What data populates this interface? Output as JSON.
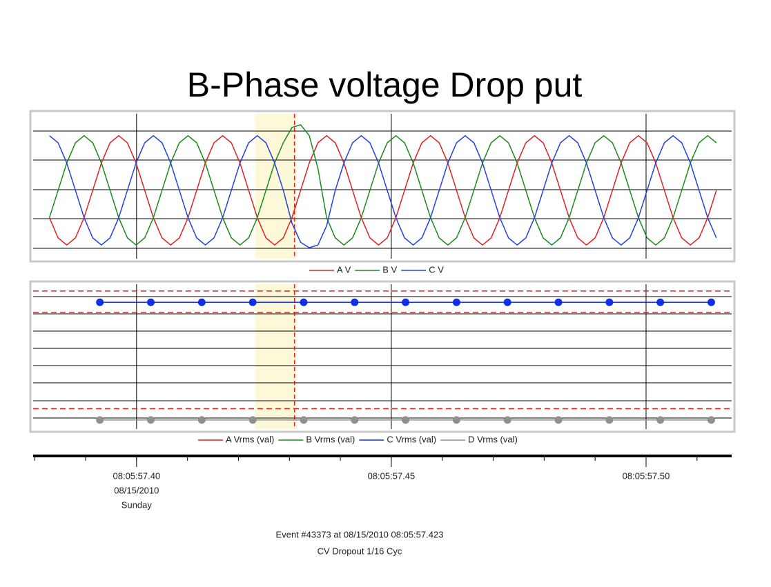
{
  "title": "B-Phase voltage Drop put",
  "time_axis": {
    "xlim": [
      57.3797,
      57.5168
    ],
    "xticks": [
      {
        "value": 57.4,
        "label": "08:05:57.40"
      },
      {
        "value": 57.45,
        "label": "08:05:57.45"
      },
      {
        "value": 57.5,
        "label": "08:05:57.50"
      }
    ],
    "xminorticks": [
      57.38,
      57.39,
      57.4,
      57.41,
      57.42,
      57.43,
      57.44,
      57.45,
      57.46,
      57.47,
      57.48,
      57.49,
      57.5,
      57.51
    ],
    "date_label": "08/15/2010",
    "day_label": "Sunday",
    "highlight": [
      57.4233,
      57.4314
    ],
    "cursor": 57.431
  },
  "chart_data": [
    {
      "type": "line",
      "xlim": [
        57.3797,
        57.5168
      ],
      "ylim": [
        -1.25,
        1.4
      ],
      "x": [
        57.3829,
        57.3846,
        57.3863,
        57.388,
        57.3897,
        57.3914,
        57.3931,
        57.3948,
        57.3965,
        57.3982,
        57.3999,
        57.4016,
        57.4033,
        57.405,
        57.4067,
        57.4084,
        57.4101,
        57.4118,
        57.4135,
        57.4152,
        57.4169,
        57.4186,
        57.4203,
        57.422,
        57.4237,
        57.4254,
        57.4271,
        57.4288,
        57.4305,
        57.4322,
        57.4339,
        57.4356,
        57.4373,
        57.439,
        57.4407,
        57.4424,
        57.4441,
        57.4458,
        57.4475,
        57.4492,
        57.4509,
        57.4526,
        57.4543,
        57.456,
        57.4577,
        57.4594,
        57.4611,
        57.4628,
        57.4645,
        57.4662,
        57.4679,
        57.4696,
        57.4713,
        57.473,
        57.4747,
        57.4764,
        57.4781,
        57.4798,
        57.4815,
        57.4832,
        57.4849,
        57.4866,
        57.4883,
        57.49,
        57.4917,
        57.4934,
        57.4951,
        57.4968,
        57.4985,
        57.5002,
        57.5019,
        57.5036,
        57.5053,
        57.507,
        57.5087,
        57.5104,
        57.5121,
        57.5138
      ],
      "series": [
        {
          "name": "A V",
          "color": "#e02020",
          "values": [
            -0.5,
            -0.87,
            -1,
            -0.87,
            -0.5,
            0,
            0.5,
            0.87,
            1,
            0.87,
            0.5,
            0,
            -0.5,
            -0.87,
            -1,
            -0.87,
            -0.5,
            0,
            0.5,
            0.87,
            1,
            0.87,
            0.5,
            0,
            -0.5,
            -0.87,
            -1,
            -0.87,
            -0.5,
            0,
            0.5,
            0.87,
            1,
            0.87,
            0.5,
            0,
            -0.5,
            -0.87,
            -1,
            -0.87,
            -0.5,
            0,
            0.5,
            0.87,
            1,
            0.87,
            0.5,
            0,
            -0.5,
            -0.87,
            -1,
            -0.87,
            -0.5,
            0,
            0.5,
            0.87,
            1,
            0.87,
            0.5,
            0,
            -0.5,
            -0.87,
            -1,
            -0.87,
            -0.5,
            0,
            0.5,
            0.87,
            1,
            0.87,
            0.5,
            0,
            -0.5,
            -0.87,
            -1,
            -0.87,
            -0.5,
            0
          ]
        },
        {
          "name": "B V",
          "color": "#1a8a1a",
          "values": [
            -0.5,
            0,
            0.5,
            0.87,
            1,
            0.87,
            0.5,
            0,
            -0.5,
            -0.87,
            -1,
            -0.87,
            -0.5,
            0,
            0.5,
            0.87,
            1,
            0.87,
            0.5,
            0,
            -0.5,
            -0.87,
            -1,
            -0.87,
            -0.5,
            0,
            0.5,
            0.87,
            1.15,
            1.2,
            1.0,
            0.4,
            -0.5,
            -0.87,
            -1,
            -0.87,
            -0.5,
            0,
            0.5,
            0.87,
            1,
            0.87,
            0.5,
            0,
            -0.5,
            -0.87,
            -1,
            -0.87,
            -0.5,
            0,
            0.5,
            0.87,
            1,
            0.87,
            0.5,
            0,
            -0.5,
            -0.87,
            -1,
            -0.87,
            -0.5,
            0,
            0.5,
            0.87,
            1,
            0.87,
            0.5,
            0,
            -0.5,
            -0.87,
            -1,
            -0.87,
            -0.5,
            0,
            0.5,
            0.87,
            1,
            0.87
          ]
        },
        {
          "name": "C V",
          "color": "#2040e0",
          "values": [
            1,
            0.87,
            0.5,
            0,
            -0.5,
            -0.87,
            -1,
            -0.87,
            -0.5,
            0,
            0.5,
            0.87,
            1,
            0.87,
            0.5,
            0,
            -0.5,
            -0.87,
            -1,
            -0.87,
            -0.5,
            0,
            0.5,
            0.87,
            1,
            0.87,
            0.5,
            0,
            -0.6,
            -0.95,
            -1.05,
            -1.0,
            -0.65,
            0,
            0.5,
            0.87,
            1,
            0.87,
            0.5,
            0,
            -0.5,
            -0.87,
            -1,
            -0.87,
            -0.5,
            0,
            0.5,
            0.87,
            1,
            0.87,
            0.5,
            0,
            -0.5,
            -0.87,
            -1,
            -0.87,
            -0.5,
            0,
            0.5,
            0.87,
            1,
            0.87,
            0.5,
            0,
            -0.5,
            -0.87,
            -1,
            -0.87,
            -0.5,
            0,
            0.5,
            0.87,
            1,
            0.87,
            0.5,
            0,
            -0.5,
            -0.87
          ]
        }
      ]
    },
    {
      "type": "line",
      "xlim": [
        57.3797,
        57.5168
      ],
      "ylim": [
        -0.08,
        1.2
      ],
      "limits": [
        1.14,
        0.95,
        0.1
      ],
      "limit_color": "#e02020",
      "x": [
        57.3928,
        57.4028,
        57.4128,
        57.4228,
        57.4328,
        57.4428,
        57.4528,
        57.4628,
        57.4728,
        57.4828,
        57.4928,
        57.5028,
        57.5128
      ],
      "series": [
        {
          "name": "A Vrms (val)",
          "color": "#e02020",
          "values": [
            1.04,
            1.04,
            1.04,
            1.04,
            1.04,
            1.04,
            1.04,
            1.04,
            1.04,
            1.04,
            1.04,
            1.04,
            1.04
          ]
        },
        {
          "name": "B Vrms (val)",
          "color": "#1a8a1a",
          "values": [
            1.04,
            1.04,
            1.04,
            1.04,
            1.04,
            1.04,
            1.04,
            1.04,
            1.04,
            1.04,
            1.04,
            1.04,
            1.04
          ]
        },
        {
          "name": "C Vrms (val)",
          "color": "#1030e8",
          "markers": true,
          "values": [
            1.04,
            1.04,
            1.04,
            1.04,
            1.04,
            1.04,
            1.04,
            1.04,
            1.04,
            1.04,
            1.04,
            1.04,
            1.04
          ]
        },
        {
          "name": "D Vrms (val)",
          "color": "#909090",
          "markers": true,
          "values": [
            0,
            0,
            0,
            0,
            0,
            0,
            0,
            0,
            0,
            0,
            0,
            0,
            0
          ]
        }
      ]
    }
  ],
  "footer": [
    "Event #43373 at 08/15/2010 08:05:57.423",
    "CV Dropout 1/16 Cyc"
  ]
}
